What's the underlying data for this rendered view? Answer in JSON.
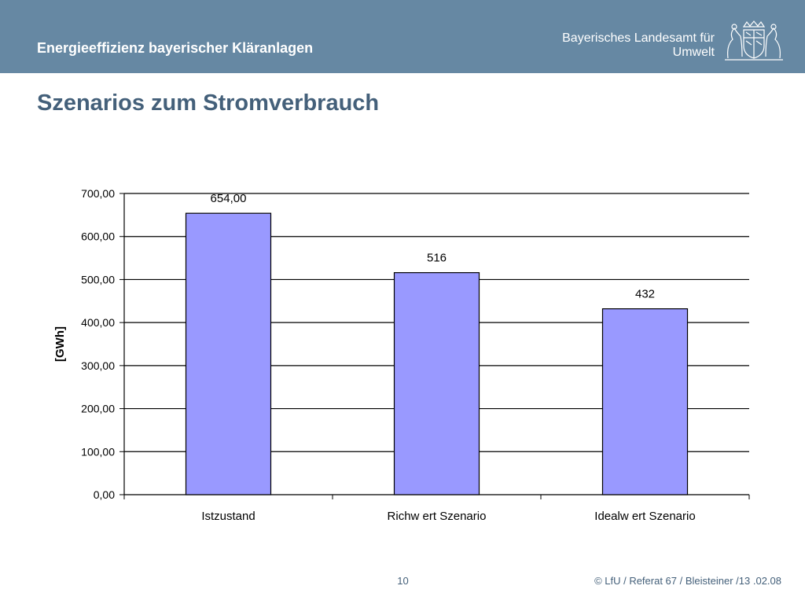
{
  "header": {
    "title": "Energieeffizienz bayerischer Kläranlagen",
    "org_line1": "Bayerisches Landesamt für",
    "org_line2": "Umwelt",
    "logo_icon": "bavarian-coat-of-arms-icon",
    "background_color": "#6688a3"
  },
  "slide": {
    "title": "Szenarios zum Stromverbrauch"
  },
  "footer": {
    "page_number": "10",
    "copyright": "© LfU / Referat 67 / Bleisteiner /13 .02.08"
  },
  "chart_data": {
    "type": "bar",
    "title": "",
    "xlabel": "",
    "ylabel": "[GWh]",
    "categories": [
      "Istzustand",
      "Richw ert Szenario",
      "Idealw ert Szenario"
    ],
    "values": [
      654,
      516,
      432
    ],
    "value_labels": [
      "654,00",
      "516",
      "432"
    ],
    "ylim": [
      0,
      700
    ],
    "yticks": [
      "0,00",
      "100,00",
      "200,00",
      "300,00",
      "400,00",
      "500,00",
      "600,00",
      "700,00"
    ],
    "grid": true,
    "bar_color": "#9999ff",
    "legend": "none"
  }
}
